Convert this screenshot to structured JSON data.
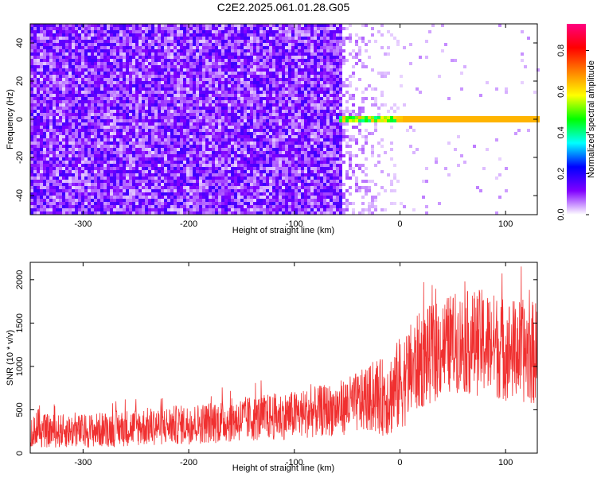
{
  "title": "C2E2.2025.061.01.28.G05",
  "chart_data": [
    {
      "type": "heatmap",
      "xlabel": "Height of straight line (km)",
      "ylabel": "Frequency (Hz)",
      "xlim": [
        -350,
        130
      ],
      "ylim": [
        -50,
        50
      ],
      "x_ticks": [
        -300,
        -200,
        -100,
        0,
        100
      ],
      "y_ticks": [
        -40,
        -20,
        0,
        20,
        40
      ],
      "colorbar": {
        "label": "Normalized spectral amplitude",
        "range": [
          0,
          0.93
        ],
        "ticks": [
          0.0,
          0.2,
          0.4,
          0.6,
          0.8
        ],
        "colormap": [
          "#ffffff",
          "#8000ff",
          "#0000ff",
          "#00ffff",
          "#00ff00",
          "#ffff00",
          "#ff8000",
          "#ff0000",
          "#ff0080"
        ]
      },
      "regions": {
        "noise_x": [
          -350,
          -55
        ],
        "noise_level": 0.12,
        "transition_x": [
          -55,
          0
        ],
        "carrier_x": [
          -55,
          130
        ],
        "carrier_frequency": 0,
        "carrier_peak": 0.9
      }
    },
    {
      "type": "line",
      "xlabel": "Height of straight line (km)",
      "ylabel": "SNR (10 * v/v)",
      "xlim": [
        -350,
        130
      ],
      "ylim": [
        0,
        2200
      ],
      "x_ticks": [
        -300,
        -200,
        -100,
        0,
        100
      ],
      "y_ticks": [
        0,
        500,
        1000,
        1500,
        2000
      ],
      "color": "#f03030",
      "envelope": {
        "x": [
          -350,
          -300,
          -250,
          -200,
          -150,
          -100,
          -60,
          -30,
          -10,
          0,
          20,
          50,
          80,
          100,
          130
        ],
        "lower": [
          60,
          60,
          80,
          100,
          130,
          160,
          200,
          240,
          180,
          250,
          500,
          700,
          650,
          600,
          550
        ],
        "upper": [
          450,
          450,
          520,
          560,
          650,
          720,
          820,
          1000,
          1150,
          1350,
          1650,
          1850,
          1900,
          1800,
          1750
        ]
      }
    }
  ]
}
